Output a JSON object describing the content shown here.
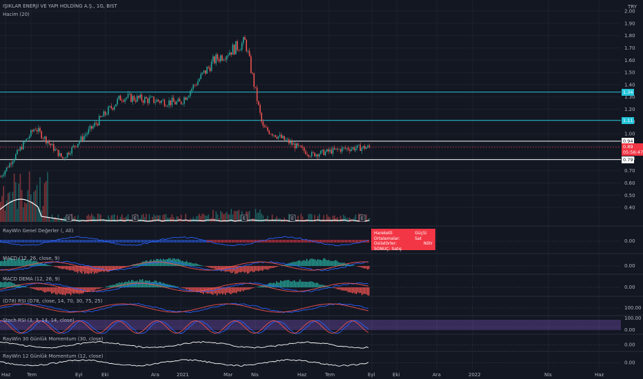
{
  "header": {
    "symbol_title": "IŞIKLAR ENERJİ VE YAPI HOLDİNG A.Ş., 1G, BIST",
    "volume_label": "Hacim (20)",
    "currency": "TRY"
  },
  "price_axis": [
    "2.00",
    "1.90",
    "1.80",
    "1.70",
    "1.60",
    "1.50",
    "1.40",
    "1.30",
    "1.20",
    "1.10",
    "1.00",
    "0.90",
    "0.80",
    "0.70",
    "0.60",
    "0.50",
    "0.40"
  ],
  "levels": [
    {
      "value": 1.34,
      "label": "1.34",
      "color": "#26c6da"
    },
    {
      "value": 1.11,
      "label": "1.11",
      "color": "#26c6da"
    },
    {
      "value": 0.94,
      "label": "0.94",
      "color": "#ffffff"
    },
    {
      "value": 0.79,
      "label": "0.79",
      "color": "#ffffff"
    }
  ],
  "current_price": {
    "value": 0.89,
    "label": "0.89",
    "countdown": "05:56:47",
    "color": "#f23645"
  },
  "earnings_marker": "E",
  "indicators": [
    {
      "name": "raywin",
      "label": "RayWin Genel Değerler (, All)",
      "axis": [
        "0.00"
      ]
    },
    {
      "name": "macd",
      "label": "MACD (12, 26, close, 9)",
      "axis": [
        "0.00"
      ]
    },
    {
      "name": "macd-dema",
      "label": "MACD DEMA (12, 26, 9)",
      "axis": [
        "0.00"
      ]
    },
    {
      "name": "rsi",
      "label": "(D78) RSI (D78, close, 14, 70, 30, 75, 25)",
      "axis": [
        "100.00"
      ]
    },
    {
      "name": "stoch",
      "label": "Stoch RSI (3, 3, 14, 14, close)",
      "axis": [
        "100.00",
        "0.00"
      ]
    },
    {
      "name": "mom30",
      "label": "RayWin 30 Günlük Momentum (30, close)",
      "axis": [
        "0.00"
      ]
    },
    {
      "name": "mom12",
      "label": "RayWin 12 Günlük Momentum (12, close)",
      "axis": [
        "0.00"
      ]
    }
  ],
  "tooltip": {
    "ma_label": "Hareketli Ortalamalar:",
    "ma_value": "Güçlü Sat",
    "osc_label": "Osilatörler:",
    "osc_value": "Nötr",
    "result_label": "SONUÇ:",
    "result_value": "Satış"
  },
  "time_axis": [
    "Haz",
    "Tem",
    "Eyl",
    "Eki",
    "Ara",
    "2021",
    "Mar",
    "Nis",
    "Haz",
    "Tem",
    "Eyl",
    "Eki",
    "Ara",
    "2022",
    "Nis",
    "Haz"
  ],
  "chart_data": {
    "type": "line",
    "title": "IŞIKLAR ENERJİ VE YAPI HOLDİNG A.Ş., 1G, BIST",
    "x": [
      "Haz",
      "Tem",
      "Eyl",
      "Eki",
      "Ara",
      "2021",
      "Mar",
      "Nis",
      "Haz",
      "Tem",
      "Eyl"
    ],
    "series": [
      {
        "name": "",
        "values": [
          0.65,
          1.05,
          0.8,
          1.3,
          1.25,
          1.6,
          1.75,
          1.05,
          0.83,
          0.88,
          0.89
        ]
      }
    ],
    "ylim": [
      0.35,
      2.0
    ],
    "levels": [
      1.34,
      1.11,
      0.94,
      0.79
    ]
  }
}
